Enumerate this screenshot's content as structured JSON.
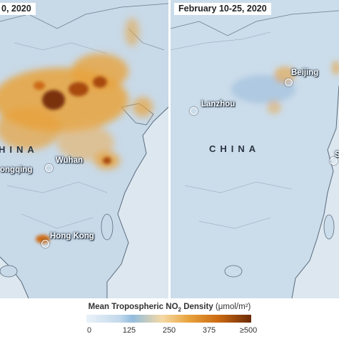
{
  "left_panel": {
    "title": "0, 2020",
    "country": "HINA",
    "cities": {
      "wuhan": "Wuhan",
      "chongqing": "ongqing",
      "hong_kong": "Hong Kong"
    }
  },
  "right_panel": {
    "title": "February 10-25, 2020",
    "country": "CHINA",
    "cities": {
      "beijing": "Beijing",
      "lanzhou": "Lanzhou",
      "shanghai": "S"
    }
  },
  "legend": {
    "title": "Mean Tropospheric NO",
    "subscript": "2",
    "title_suffix": "Density",
    "unit": "(μmol/m²)",
    "ticks": [
      "0",
      "125",
      "250",
      "375",
      "≥500"
    ],
    "colors": {
      "low": "#eaf2f9",
      "mid_blue": "#92bcdd",
      "mid": "#e8a33c",
      "high": "#6b2a06"
    }
  },
  "colors": {
    "land": "#c6d8e8",
    "ocean": "#dde8f1",
    "outline": "#5a6b7c"
  }
}
